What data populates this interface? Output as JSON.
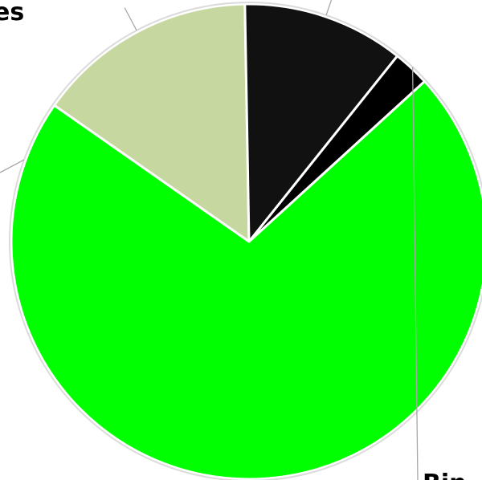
{
  "chart_data": {
    "type": "pie",
    "title": "",
    "start_angle_deg": 305,
    "direction": "clockwise",
    "slices": [
      {
        "label": "",
        "value": 15,
        "color": "#c6d7a0"
      },
      {
        "label": "",
        "value": 11,
        "color": "#111111"
      },
      {
        "label": "",
        "value": 2.5,
        "color": "#000000"
      },
      {
        "label": "",
        "value": 71.5,
        "color": "#00ff00"
      }
    ],
    "visible_labels": [
      {
        "text": "es"
      },
      {
        "text": "Bin"
      }
    ]
  }
}
